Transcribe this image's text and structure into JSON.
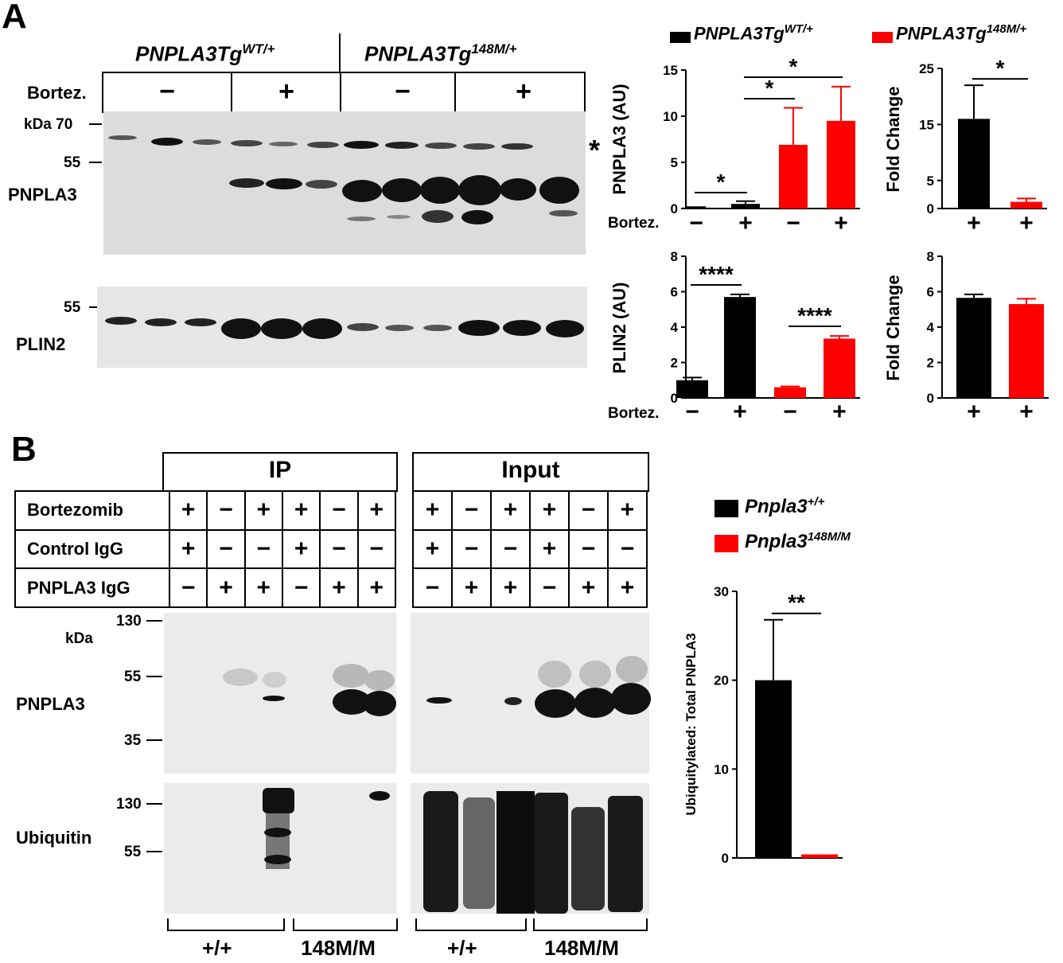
{
  "panel_a": {
    "letter": "A",
    "geno_wt": "PNPLA3Tg",
    "geno_wt_sup": "WT/+",
    "geno_mut": "PNPLA3Tg",
    "geno_mut_sup": "148M/+",
    "bortez_label": "Bortez.",
    "treatment_signs": [
      "−",
      "+",
      "−",
      "+"
    ],
    "kda_label": "kDa 70",
    "mw_55": "55",
    "mw_55b": "55",
    "pnpla3_label": "PNPLA3",
    "plin2_label": "PLIN2",
    "star": "*"
  },
  "legend_a": {
    "wt": "PNPLA3Tg",
    "wt_sup": "WT/+",
    "mut": "PNPLA3Tg",
    "mut_sup": "148M/+",
    "wt_color": "#000000",
    "mut_color": "#ff0000"
  },
  "panel_b": {
    "letter": "B",
    "ip_label": "IP",
    "input_label": "Input",
    "rows": [
      {
        "label": "Bortezomib",
        "ip": [
          "+",
          "−",
          "+",
          "+",
          "−",
          "+"
        ],
        "input": [
          "+",
          "−",
          "+",
          "+",
          "−",
          "+"
        ]
      },
      {
        "label": "Control IgG",
        "ip": [
          "+",
          "−",
          "−",
          "+",
          "−",
          "−"
        ],
        "input": [
          "+",
          "−",
          "−",
          "+",
          "−",
          "−"
        ]
      },
      {
        "label": "PNPLA3 IgG",
        "ip": [
          "−",
          "+",
          "+",
          "−",
          "+",
          "+"
        ],
        "input": [
          "−",
          "+",
          "+",
          "−",
          "+",
          "+"
        ]
      }
    ],
    "mw_130": "130",
    "kda": "kDa",
    "mw_55": "55",
    "mw_35": "35",
    "mw_130b": "130",
    "mw_55b": "55",
    "pnpla3_label": "PNPLA3",
    "ubiquitin_label": "Ubiquitin",
    "geno_labels": [
      "+/+",
      "148M/M",
      "+/+",
      "148M/M"
    ]
  },
  "legend_b": {
    "wt": "Pnpla3",
    "wt_sup": "+/+",
    "mut": "Pnpla3",
    "mut_sup": "148M/M",
    "wt_color": "#000000",
    "mut_color": "#ff0000"
  },
  "chart_data": [
    {
      "type": "bar",
      "ylabel": "PNPLA3 (AU)",
      "xlabel": "Bortez.",
      "categories": [
        "−",
        "+",
        "−",
        "+"
      ],
      "values": [
        0.1,
        0.5,
        6.9,
        9.5
      ],
      "errors": [
        0.05,
        0.3,
        4.0,
        3.7
      ],
      "colors": [
        "#000000",
        "#000000",
        "#ff0000",
        "#ff0000"
      ],
      "ylim": [
        0,
        15
      ],
      "yticks": [
        "0",
        "5",
        "10",
        "15"
      ],
      "significance": [
        {
          "from": 0,
          "to": 1,
          "label": "*"
        },
        {
          "from": 1,
          "to": 2,
          "label": "*"
        },
        {
          "from": 1,
          "to": 3,
          "label": "*"
        }
      ]
    },
    {
      "type": "bar",
      "ylabel": "Fold Change",
      "categories": [
        "+",
        "+"
      ],
      "values": [
        16,
        1.2
      ],
      "errors": [
        6,
        0.6
      ],
      "colors": [
        "#000000",
        "#ff0000"
      ],
      "ylim": [
        0,
        25
      ],
      "yticks": [
        "0",
        "5",
        "15",
        "25"
      ],
      "significance": [
        {
          "from": 0,
          "to": 1,
          "label": "*"
        }
      ]
    },
    {
      "type": "bar",
      "ylabel": "PLIN2 (AU)",
      "xlabel": "Bortez.",
      "categories": [
        "−",
        "+",
        "−",
        "+"
      ],
      "values": [
        1.0,
        5.7,
        0.6,
        3.35
      ],
      "errors": [
        0.15,
        0.15,
        0.05,
        0.15
      ],
      "colors": [
        "#000000",
        "#000000",
        "#ff0000",
        "#ff0000"
      ],
      "ylim": [
        0,
        8
      ],
      "yticks": [
        "0",
        "2",
        "4",
        "6",
        "8"
      ],
      "significance": [
        {
          "from": 0,
          "to": 1,
          "label": "****"
        },
        {
          "from": 2,
          "to": 3,
          "label": "****"
        }
      ]
    },
    {
      "type": "bar",
      "ylabel": "Fold Change",
      "categories": [
        "+",
        "+"
      ],
      "values": [
        5.65,
        5.3
      ],
      "errors": [
        0.2,
        0.3
      ],
      "colors": [
        "#000000",
        "#ff0000"
      ],
      "ylim": [
        0,
        8
      ],
      "yticks": [
        "0",
        "2",
        "4",
        "6",
        "8"
      ],
      "significance": []
    },
    {
      "type": "bar",
      "ylabel": "Ubiquitylated: Total PNPLA3",
      "categories": [
        "",
        ""
      ],
      "values": [
        20,
        0.4
      ],
      "errors": [
        6.8,
        0
      ],
      "colors": [
        "#000000",
        "#ff0000"
      ],
      "ylim": [
        0,
        30
      ],
      "yticks": [
        "0",
        "10",
        "20",
        "30"
      ],
      "significance": [
        {
          "from": 0,
          "to": 1,
          "label": "**"
        }
      ]
    }
  ]
}
